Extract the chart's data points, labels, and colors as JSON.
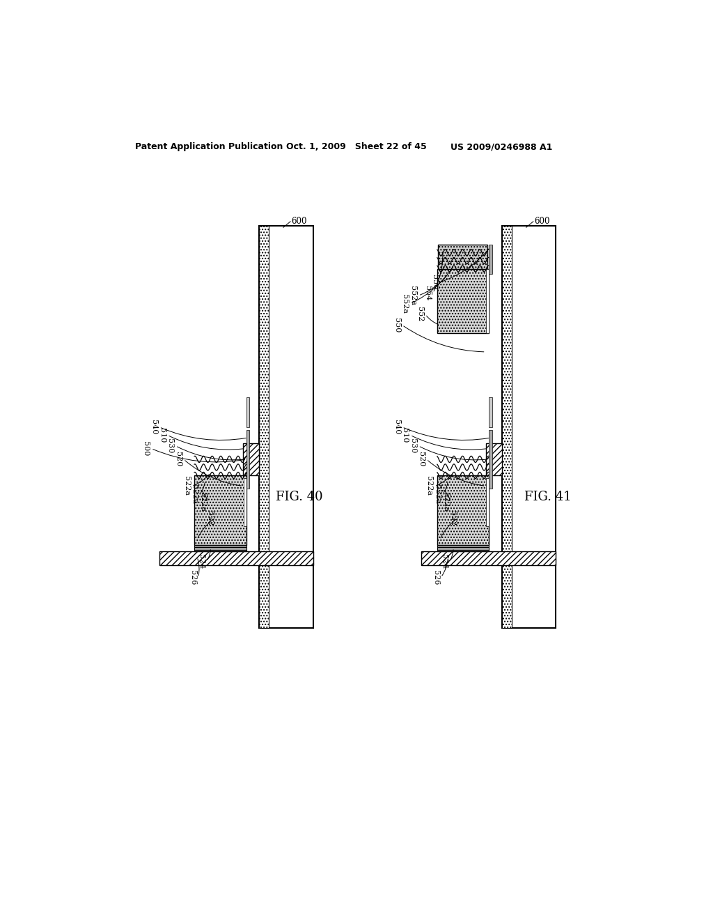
{
  "bg_color": "#ffffff",
  "header_left": "Patent Application Publication",
  "header_mid": "Oct. 1, 2009   Sheet 22 of 45",
  "header_right": "US 2009/0246988 A1",
  "fig40_label": "FIG. 40",
  "fig41_label": "FIG. 41"
}
